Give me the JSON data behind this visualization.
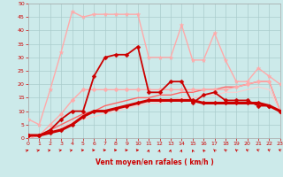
{
  "xlabel": "Vent moyen/en rafales ( km/h )",
  "xlim": [
    0,
    23
  ],
  "ylim": [
    0,
    50
  ],
  "xticks": [
    0,
    1,
    2,
    3,
    4,
    5,
    6,
    7,
    8,
    9,
    10,
    11,
    12,
    13,
    14,
    15,
    16,
    17,
    18,
    19,
    20,
    21,
    22,
    23
  ],
  "yticks": [
    0,
    5,
    10,
    15,
    20,
    25,
    30,
    35,
    40,
    45,
    50
  ],
  "bg_color": "#cceaea",
  "grid_color": "#aacccc",
  "series": [
    {
      "x": [
        0,
        1,
        2,
        3,
        4,
        5,
        6,
        7,
        8,
        9,
        10,
        11,
        12,
        13,
        14,
        15,
        16,
        17,
        18,
        19,
        20,
        21,
        22,
        23
      ],
      "y": [
        1,
        1,
        2,
        3,
        5,
        8,
        10,
        10,
        11,
        12,
        13,
        14,
        14,
        14,
        14,
        14,
        13,
        13,
        13,
        13,
        13,
        13,
        12,
        10
      ],
      "color": "#cc0000",
      "lw": 2.2,
      "marker": "D",
      "ms": 2.5,
      "zorder": 6
    },
    {
      "x": [
        0,
        1,
        2,
        3,
        4,
        5,
        6,
        7,
        8,
        9,
        10,
        11,
        12,
        13,
        14,
        15,
        16,
        17,
        18,
        19,
        20,
        21,
        22,
        23
      ],
      "y": [
        1,
        1,
        3,
        7,
        10,
        10,
        23,
        30,
        31,
        31,
        34,
        17,
        17,
        21,
        21,
        13,
        16,
        17,
        14,
        14,
        14,
        12,
        12,
        10
      ],
      "color": "#cc0000",
      "lw": 1.3,
      "marker": "D",
      "ms": 2.5,
      "zorder": 5
    },
    {
      "x": [
        0,
        1,
        2,
        3,
        4,
        5,
        6,
        7,
        8,
        9,
        10,
        11,
        12,
        13,
        14,
        15,
        16,
        17,
        18,
        19,
        20,
        21,
        22,
        23
      ],
      "y": [
        7,
        5,
        18,
        32,
        47,
        45,
        46,
        46,
        46,
        46,
        46,
        30,
        30,
        30,
        42,
        29,
        29,
        39,
        29,
        21,
        21,
        26,
        23,
        20
      ],
      "color": "#ffaaaa",
      "lw": 1.0,
      "marker": "*",
      "ms": 3.5,
      "zorder": 3
    },
    {
      "x": [
        0,
        1,
        2,
        3,
        4,
        5,
        6,
        7,
        8,
        9,
        10,
        11,
        12,
        13,
        14,
        15,
        16,
        17,
        18,
        19,
        20,
        21,
        22,
        23
      ],
      "y": [
        1,
        1,
        5,
        9,
        14,
        18,
        18,
        18,
        18,
        18,
        18,
        18,
        18,
        18,
        18,
        18,
        18,
        18,
        18,
        19,
        20,
        21,
        21,
        10
      ],
      "color": "#ffaaaa",
      "lw": 1.0,
      "marker": "D",
      "ms": 2.5,
      "zorder": 4
    },
    {
      "x": [
        0,
        1,
        2,
        3,
        4,
        5,
        6,
        7,
        8,
        9,
        10,
        11,
        12,
        13,
        14,
        15,
        16,
        17,
        18,
        19,
        20,
        21,
        22,
        23
      ],
      "y": [
        0,
        1,
        3,
        5,
        7,
        9,
        10,
        12,
        13,
        14,
        15,
        15,
        16,
        16,
        17,
        17,
        18,
        18,
        19,
        19,
        20,
        21,
        21,
        10
      ],
      "color": "#ff6666",
      "lw": 1.0,
      "marker": null,
      "ms": 0,
      "zorder": 2
    },
    {
      "x": [
        0,
        1,
        2,
        3,
        4,
        5,
        6,
        7,
        8,
        9,
        10,
        11,
        12,
        13,
        14,
        15,
        16,
        17,
        18,
        19,
        20,
        21,
        22,
        23
      ],
      "y": [
        0,
        1,
        2,
        4,
        6,
        7,
        8,
        9,
        10,
        11,
        12,
        13,
        13,
        14,
        15,
        15,
        16,
        16,
        17,
        17,
        18,
        19,
        18,
        10
      ],
      "color": "#ffcccc",
      "lw": 0.8,
      "marker": null,
      "ms": 0,
      "zorder": 2
    }
  ],
  "wind_arrows": {
    "x": [
      0,
      1,
      2,
      3,
      4,
      5,
      6,
      7,
      8,
      9,
      10,
      11,
      12,
      13,
      14,
      15,
      16,
      17,
      18,
      19,
      20,
      21,
      22,
      23
    ],
    "angles_deg": [
      45,
      50,
      55,
      60,
      55,
      75,
      80,
      85,
      85,
      85,
      80,
      5,
      5,
      5,
      5,
      355,
      350,
      345,
      340,
      340,
      335,
      330,
      330,
      330
    ]
  }
}
